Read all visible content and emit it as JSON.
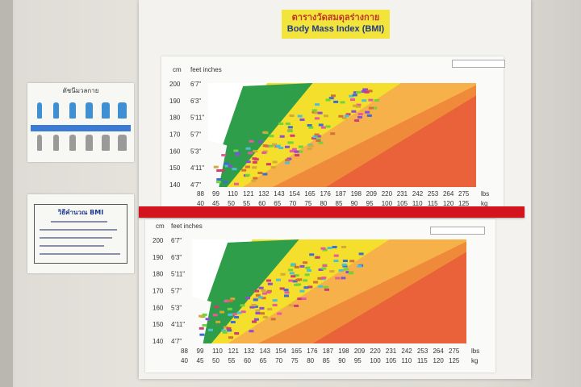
{
  "title": {
    "thai": "ตารางวัดสมดุลร่างกาย",
    "english": "Body Mass Index (BMI)"
  },
  "chart_top": {
    "unit_cm": "cm",
    "unit_feet": "feet inches",
    "cm_ticks": [
      "200",
      "190",
      "180",
      "170",
      "160",
      "150",
      "140"
    ],
    "ft_ticks": [
      "6'7\"",
      "6'3\"",
      "5'11\"",
      "5'7\"",
      "5'3\"",
      "4'11\"",
      "4'7\""
    ],
    "lbs_ticks": [
      "88",
      "99",
      "110",
      "121",
      "132",
      "143",
      "154",
      "165",
      "176",
      "187",
      "198",
      "209",
      "220",
      "231",
      "242",
      "253",
      "264",
      "275"
    ],
    "kg_ticks": [
      "40",
      "45",
      "50",
      "55",
      "60",
      "65",
      "70",
      "75",
      "80",
      "85",
      "90",
      "95",
      "100",
      "105",
      "110",
      "115",
      "120",
      "125"
    ],
    "lbs_unit": "lbs",
    "kg_unit": "kg"
  },
  "chart_bottom": {
    "unit_cm": "cm",
    "unit_feet": "feet inches",
    "cm_ticks": [
      "200",
      "190",
      "180",
      "170",
      "160",
      "150",
      "140"
    ],
    "ft_ticks": [
      "6'7\"",
      "6'3\"",
      "5'11\"",
      "5'7\"",
      "5'3\"",
      "4'11\"",
      "4'7\""
    ],
    "lbs_ticks": [
      "88",
      "99",
      "110",
      "121",
      "132",
      "143",
      "154",
      "165",
      "176",
      "187",
      "198",
      "209",
      "220",
      "231",
      "242",
      "253",
      "264",
      "275"
    ],
    "kg_ticks": [
      "40",
      "45",
      "50",
      "55",
      "60",
      "65",
      "70",
      "75",
      "80",
      "85",
      "90",
      "95",
      "100",
      "105",
      "110",
      "115",
      "120",
      "125"
    ],
    "lbs_unit": "lbs",
    "kg_unit": "kg"
  },
  "side_poster_top": {
    "title": "ดัชนีมวลกาย"
  },
  "side_poster_bottom": {
    "title": "วิธีคำนวณ BMI"
  },
  "colors": {
    "green": "#2e9e4a",
    "yellow": "#f3df2c",
    "light_orange": "#f6b14a",
    "orange": "#ef8a3a",
    "red_orange": "#e9623a",
    "ribbon": "#d4141c"
  }
}
